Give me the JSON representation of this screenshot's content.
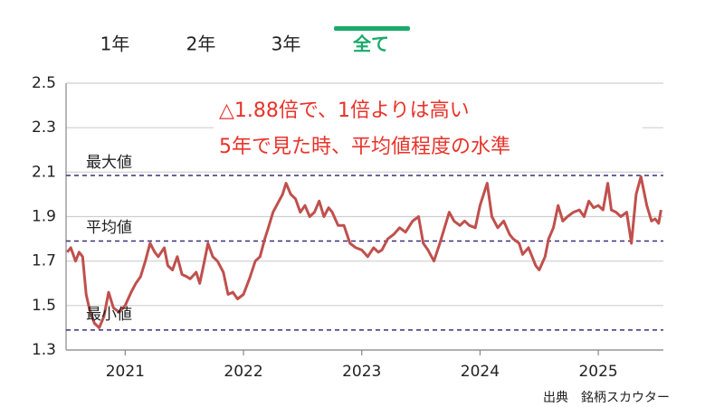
{
  "tabs": {
    "items": [
      "1年",
      "2年",
      "3年",
      "全て"
    ],
    "selected": 3
  },
  "chart_data": {
    "type": "line",
    "annotations": [
      "△1.88倍で、1倍よりは高い",
      "5年で見た時、平均値程度の水準"
    ],
    "color": "#c0504d",
    "xlim": [
      2020.5,
      2025.55
    ],
    "xticks": [
      2021,
      2022,
      2023,
      2024,
      2025
    ],
    "ylim": [
      1.3,
      2.5
    ],
    "yticks": [
      1.3,
      1.5,
      1.7,
      1.9,
      2.1,
      2.3,
      2.5
    ],
    "grid": true,
    "reference_lines": [
      {
        "label": "最大値",
        "value": 2.085
      },
      {
        "label": "平均値",
        "value": 1.79
      },
      {
        "label": "最小値",
        "value": 1.39
      }
    ],
    "reference_color": "#3d2f7a",
    "x": [
      2020.51,
      2020.54,
      2020.58,
      2020.61,
      2020.64,
      2020.67,
      2020.7,
      2020.74,
      2020.78,
      2020.82,
      2020.86,
      2020.9,
      2020.95,
      2021.0,
      2021.05,
      2021.09,
      2021.13,
      2021.17,
      2021.21,
      2021.25,
      2021.28,
      2021.33,
      2021.36,
      2021.4,
      2021.44,
      2021.48,
      2021.52,
      2021.55,
      2021.6,
      2021.63,
      2021.67,
      2021.7,
      2021.74,
      2021.78,
      2021.83,
      2021.87,
      2021.91,
      2021.95,
      2022.0,
      2022.05,
      2022.1,
      2022.14,
      2022.18,
      2022.21,
      2022.25,
      2022.29,
      2022.33,
      2022.36,
      2022.4,
      2022.44,
      2022.48,
      2022.52,
      2022.56,
      2022.6,
      2022.64,
      2022.68,
      2022.72,
      2022.75,
      2022.8,
      2022.85,
      2022.9,
      2022.95,
      2023.0,
      2023.05,
      2023.1,
      2023.14,
      2023.17,
      2023.22,
      2023.27,
      2023.32,
      2023.37,
      2023.43,
      2023.48,
      2023.52,
      2023.56,
      2023.61,
      2023.66,
      2023.7,
      2023.74,
      2023.78,
      2023.83,
      2023.87,
      2023.91,
      2023.96,
      2024.0,
      2024.06,
      2024.1,
      2024.15,
      2024.2,
      2024.25,
      2024.28,
      2024.33,
      2024.36,
      2024.41,
      2024.47,
      2024.5,
      2024.55,
      2024.58,
      2024.62,
      2024.66,
      2024.7,
      2024.74,
      2024.79,
      2024.84,
      2024.88,
      2024.92,
      2024.96,
      2025.0,
      2025.04,
      2025.08,
      2025.11,
      2025.15,
      2025.19,
      2025.24,
      2025.28,
      2025.32,
      2025.36,
      2025.41,
      2025.45,
      2025.48,
      2025.51,
      2025.53
    ],
    "values": [
      1.74,
      1.76,
      1.7,
      1.74,
      1.72,
      1.55,
      1.48,
      1.42,
      1.4,
      1.45,
      1.56,
      1.49,
      1.47,
      1.5,
      1.56,
      1.6,
      1.63,
      1.7,
      1.78,
      1.74,
      1.72,
      1.76,
      1.68,
      1.66,
      1.72,
      1.64,
      1.63,
      1.62,
      1.65,
      1.6,
      1.7,
      1.78,
      1.72,
      1.7,
      1.65,
      1.55,
      1.56,
      1.53,
      1.55,
      1.62,
      1.7,
      1.72,
      1.8,
      1.85,
      1.92,
      1.96,
      2.0,
      2.05,
      2.0,
      1.98,
      1.92,
      1.95,
      1.9,
      1.92,
      1.97,
      1.9,
      1.94,
      1.92,
      1.86,
      1.86,
      1.78,
      1.76,
      1.75,
      1.72,
      1.76,
      1.74,
      1.75,
      1.8,
      1.82,
      1.85,
      1.83,
      1.88,
      1.9,
      1.78,
      1.75,
      1.7,
      1.78,
      1.85,
      1.92,
      1.88,
      1.86,
      1.88,
      1.86,
      1.85,
      1.95,
      2.05,
      1.9,
      1.85,
      1.88,
      1.82,
      1.8,
      1.78,
      1.73,
      1.76,
      1.68,
      1.66,
      1.72,
      1.8,
      1.85,
      1.95,
      1.88,
      1.9,
      1.92,
      1.93,
      1.9,
      1.97,
      1.94,
      1.95,
      1.93,
      2.05,
      1.93,
      1.92,
      1.9,
      1.92,
      1.78,
      2.0,
      2.08,
      1.95,
      1.88,
      1.89,
      1.87,
      1.93
    ]
  },
  "source": "出典　銘柄スカウター"
}
